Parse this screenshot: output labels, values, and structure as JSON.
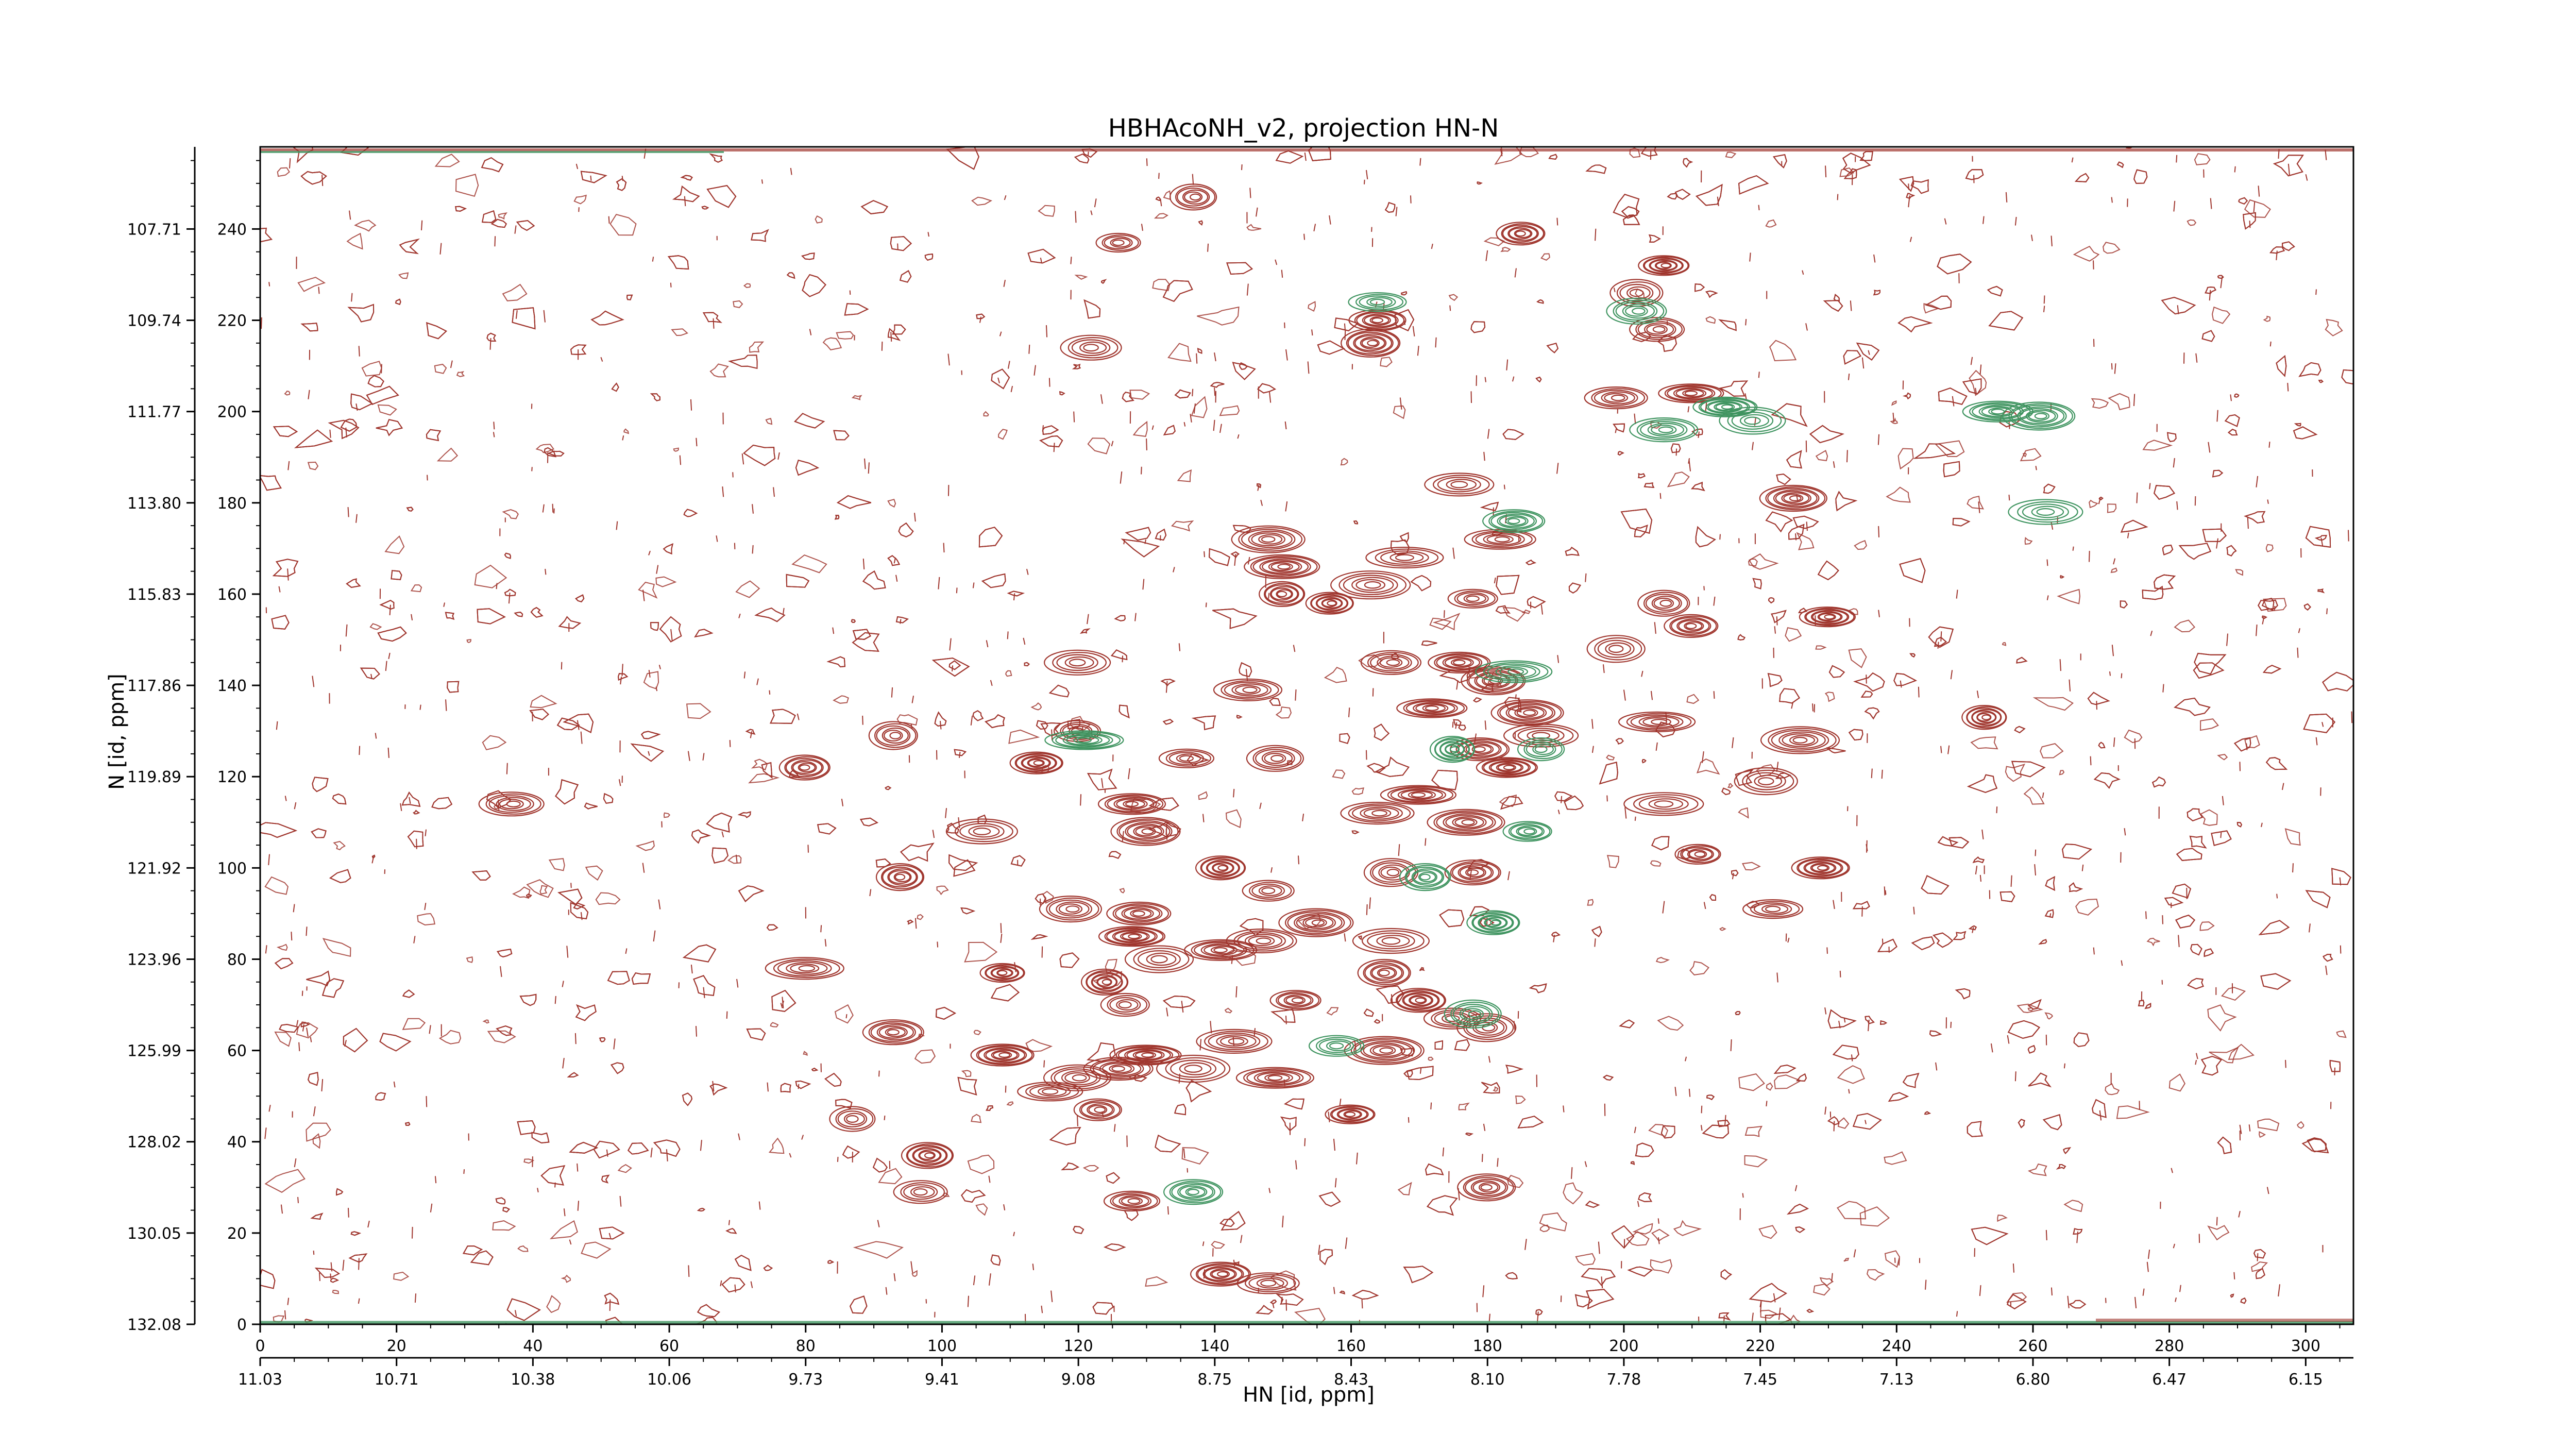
{
  "chart_data": {
    "type": "contour",
    "title": "HBHAcoNH_v2, projection HN-N",
    "xlabel": "HN [id, ppm]",
    "ylabel": "N [id, ppm]",
    "xlim": [
      0,
      307
    ],
    "ylim": [
      0,
      258
    ],
    "x_index_ticks": [
      0,
      20,
      40,
      60,
      80,
      100,
      120,
      140,
      160,
      180,
      200,
      220,
      240,
      260,
      280,
      300
    ],
    "y_index_ticks": [
      0,
      20,
      40,
      60,
      80,
      100,
      120,
      140,
      160,
      180,
      200,
      220,
      240
    ],
    "x_ppm_ticks": [
      "11.03",
      "10.71",
      "10.38",
      "10.06",
      "9.73",
      "9.41",
      "9.08",
      "8.75",
      "8.43",
      "8.10",
      "7.78",
      "7.45",
      "7.13",
      "6.80",
      "6.47",
      "6.15"
    ],
    "y_ppm_ticks": [
      "132.08",
      "130.05",
      "128.02",
      "125.99",
      "123.96",
      "121.92",
      "119.89",
      "117.86",
      "115.83",
      "113.80",
      "111.77",
      "109.74",
      "107.71"
    ],
    "series": [
      {
        "sign": "positive",
        "color": "#a0362e",
        "peaks": [
          [
            126,
            237
          ],
          [
            137,
            247
          ],
          [
            185,
            239
          ],
          [
            206,
            232
          ],
          [
            202,
            226
          ],
          [
            205,
            218
          ],
          [
            164,
            220
          ],
          [
            163,
            215
          ],
          [
            122,
            214
          ],
          [
            199,
            203
          ],
          [
            210,
            204
          ],
          [
            225,
            181
          ],
          [
            176,
            184
          ],
          [
            182,
            172
          ],
          [
            148,
            172
          ],
          [
            150,
            166
          ],
          [
            168,
            168
          ],
          [
            163,
            162
          ],
          [
            150,
            160
          ],
          [
            157,
            158
          ],
          [
            178,
            159
          ],
          [
            206,
            158
          ],
          [
            210,
            153
          ],
          [
            230,
            155
          ],
          [
            199,
            148
          ],
          [
            166,
            145
          ],
          [
            176,
            145
          ],
          [
            181,
            141
          ],
          [
            120,
            145
          ],
          [
            145,
            139
          ],
          [
            172,
            135
          ],
          [
            186,
            134
          ],
          [
            188,
            129
          ],
          [
            205,
            132
          ],
          [
            226,
            128
          ],
          [
            253,
            133
          ],
          [
            120,
            130
          ],
          [
            93,
            129
          ],
          [
            80,
            122
          ],
          [
            114,
            123
          ],
          [
            136,
            124
          ],
          [
            149,
            124
          ],
          [
            179,
            126
          ],
          [
            183,
            122
          ],
          [
            221,
            119
          ],
          [
            37,
            114
          ],
          [
            128,
            114
          ],
          [
            130,
            108
          ],
          [
            106,
            108
          ],
          [
            164,
            112
          ],
          [
            170,
            116
          ],
          [
            177,
            110
          ],
          [
            206,
            114
          ],
          [
            211,
            103
          ],
          [
            94,
            98
          ],
          [
            141,
            100
          ],
          [
            148,
            95
          ],
          [
            166,
            99
          ],
          [
            178,
            99
          ],
          [
            229,
            100
          ],
          [
            222,
            91
          ],
          [
            119,
            91
          ],
          [
            129,
            90
          ],
          [
            128,
            85
          ],
          [
            132,
            80
          ],
          [
            147,
            84
          ],
          [
            141,
            82
          ],
          [
            155,
            88
          ],
          [
            166,
            84
          ],
          [
            80,
            78
          ],
          [
            109,
            77
          ],
          [
            124,
            75
          ],
          [
            127,
            70
          ],
          [
            152,
            71
          ],
          [
            165,
            77
          ],
          [
            170,
            71
          ],
          [
            175,
            67
          ],
          [
            180,
            65
          ],
          [
            93,
            64
          ],
          [
            109,
            59
          ],
          [
            116,
            51
          ],
          [
            120,
            54
          ],
          [
            126,
            56
          ],
          [
            130,
            59
          ],
          [
            137,
            56
          ],
          [
            143,
            62
          ],
          [
            149,
            54
          ],
          [
            165,
            60
          ],
          [
            87,
            45
          ],
          [
            123,
            47
          ],
          [
            160,
            46
          ],
          [
            98,
            37
          ],
          [
            97,
            29
          ],
          [
            128,
            27
          ],
          [
            180,
            30
          ],
          [
            141,
            11
          ],
          [
            148,
            9
          ]
        ]
      },
      {
        "sign": "negative",
        "color": "#3f9460",
        "peaks": [
          [
            164,
            224
          ],
          [
            202,
            222
          ],
          [
            184,
            176
          ],
          [
            215,
            201
          ],
          [
            219,
            198
          ],
          [
            206,
            196
          ],
          [
            255,
            200
          ],
          [
            261,
            199
          ],
          [
            262,
            178
          ],
          [
            184,
            143
          ],
          [
            121,
            128
          ],
          [
            175,
            126
          ],
          [
            188,
            126
          ],
          [
            186,
            108
          ],
          [
            171,
            98
          ],
          [
            181,
            88
          ],
          [
            158,
            61
          ],
          [
            178,
            68
          ],
          [
            137,
            29
          ]
        ]
      }
    ]
  }
}
